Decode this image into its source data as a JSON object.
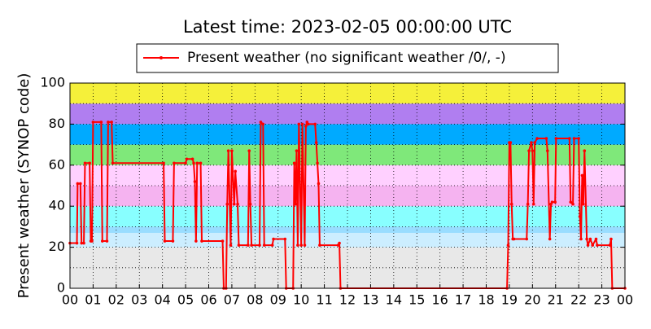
{
  "chart_data": {
    "type": "line",
    "title": "Latest time: 2023-02-05 00:00:00 UTC",
    "ylabel": "Present weather (SYNOP code)",
    "ylim": [
      0,
      100
    ],
    "yticks": [
      0,
      20,
      40,
      60,
      80,
      100
    ],
    "y_minor_grid": [
      10,
      30,
      50,
      70,
      90
    ],
    "xlim": [
      0,
      24
    ],
    "xticks": [
      {
        "value": 0,
        "label": "00"
      },
      {
        "value": 1,
        "label": "01"
      },
      {
        "value": 2,
        "label": "02"
      },
      {
        "value": 3,
        "label": "03"
      },
      {
        "value": 4,
        "label": "04"
      },
      {
        "value": 5,
        "label": "05"
      },
      {
        "value": 6,
        "label": "06"
      },
      {
        "value": 7,
        "label": "07"
      },
      {
        "value": 8,
        "label": "08"
      },
      {
        "value": 9,
        "label": "09"
      },
      {
        "value": 10,
        "label": "10"
      },
      {
        "value": 11,
        "label": "11"
      },
      {
        "value": 12,
        "label": "12"
      },
      {
        "value": 13,
        "label": "13"
      },
      {
        "value": 14,
        "label": "14"
      },
      {
        "value": 15,
        "label": "15"
      },
      {
        "value": 16,
        "label": "16"
      },
      {
        "value": 17,
        "label": "17"
      },
      {
        "value": 18,
        "label": "18"
      },
      {
        "value": 19,
        "label": "19"
      },
      {
        "value": 20,
        "label": "20"
      },
      {
        "value": 21,
        "label": "21"
      },
      {
        "value": 22,
        "label": "22"
      },
      {
        "value": 23,
        "label": "23"
      },
      {
        "value": 24,
        "label": "00"
      }
    ],
    "grid": true,
    "bands": [
      {
        "from": 0,
        "to": 20,
        "color": "#e8e8e8"
      },
      {
        "from": 20,
        "to": 27,
        "color": "#cceeff"
      },
      {
        "from": 27,
        "to": 30,
        "color": "#99ddff"
      },
      {
        "from": 30,
        "to": 40,
        "color": "#88ffff"
      },
      {
        "from": 40,
        "to": 50,
        "color": "#f5b3f0"
      },
      {
        "from": 50,
        "to": 60,
        "color": "#ffd0ff"
      },
      {
        "from": 60,
        "to": 70,
        "color": "#7fe87a"
      },
      {
        "from": 70,
        "to": 80,
        "color": "#00aaff"
      },
      {
        "from": 80,
        "to": 90,
        "color": "#b07ef0"
      },
      {
        "from": 90,
        "to": 100,
        "color": "#f5f03a"
      }
    ],
    "legend": "top",
    "series": [
      {
        "name": "Present weather (no significant weather /0/, -)",
        "color": "#ff0000",
        "x": [
          0,
          0.3,
          0.33,
          0.45,
          0.5,
          0.6,
          0.65,
          0.85,
          0.9,
          0.95,
          1.0,
          1.35,
          1.4,
          1.6,
          1.65,
          1.8,
          1.85,
          4.05,
          4.1,
          4.45,
          4.5,
          5.0,
          5.05,
          5.3,
          5.35,
          5.4,
          5.45,
          5.5,
          5.65,
          5.7,
          6.6,
          6.65,
          6.75,
          6.8,
          6.85,
          6.95,
          7.0,
          7.1,
          7.15,
          7.25,
          7.3,
          7.7,
          7.75,
          7.8,
          7.85,
          8.2,
          8.25,
          8.35,
          8.4,
          8.75,
          8.8,
          9.3,
          9.35,
          9.65,
          9.7,
          9.75,
          9.8,
          9.85,
          9.9,
          10.0,
          10.05,
          10.15,
          10.2,
          10.25,
          10.3,
          10.6,
          10.65,
          10.7,
          10.75,
          10.8,
          11.6,
          11.65,
          11.7,
          18.9,
          18.95,
          19.0,
          19.05,
          19.1,
          19.15,
          19.2,
          19.75,
          19.8,
          19.85,
          19.95,
          20.0,
          20.05,
          20.1,
          20.2,
          20.6,
          20.65,
          20.75,
          20.8,
          20.85,
          20.98,
          21.02,
          21.6,
          21.65,
          21.75,
          21.8,
          22.0,
          22.05,
          22.1,
          22.15,
          22.2,
          22.25,
          22.35,
          22.4,
          22.5,
          22.6,
          22.75,
          22.8,
          23.35,
          23.4,
          23.45,
          24
        ],
        "values": [
          22,
          22,
          51,
          51,
          22,
          22,
          61,
          61,
          23,
          23,
          81,
          81,
          23,
          23,
          81,
          81,
          61,
          61,
          23,
          23,
          61,
          61,
          63,
          63,
          61,
          52,
          23,
          61,
          61,
          23,
          23,
          0,
          0,
          41,
          67,
          21,
          67,
          41,
          57,
          41,
          21,
          21,
          67,
          41,
          21,
          21,
          81,
          80,
          21,
          21,
          24,
          24,
          0,
          0,
          61,
          41,
          67,
          21,
          80,
          21,
          80,
          21,
          79,
          81,
          80,
          80,
          71,
          61,
          51,
          21,
          21,
          22,
          0,
          0,
          21,
          71,
          71,
          41,
          24,
          24,
          24,
          41,
          67,
          71,
          67,
          41,
          71,
          73,
          73,
          67,
          24,
          41,
          42,
          42,
          73,
          73,
          42,
          41,
          73,
          73,
          35,
          24,
          55,
          41,
          67,
          24,
          21,
          24,
          21,
          24,
          21,
          21,
          24,
          0,
          0
        ]
      }
    ]
  }
}
